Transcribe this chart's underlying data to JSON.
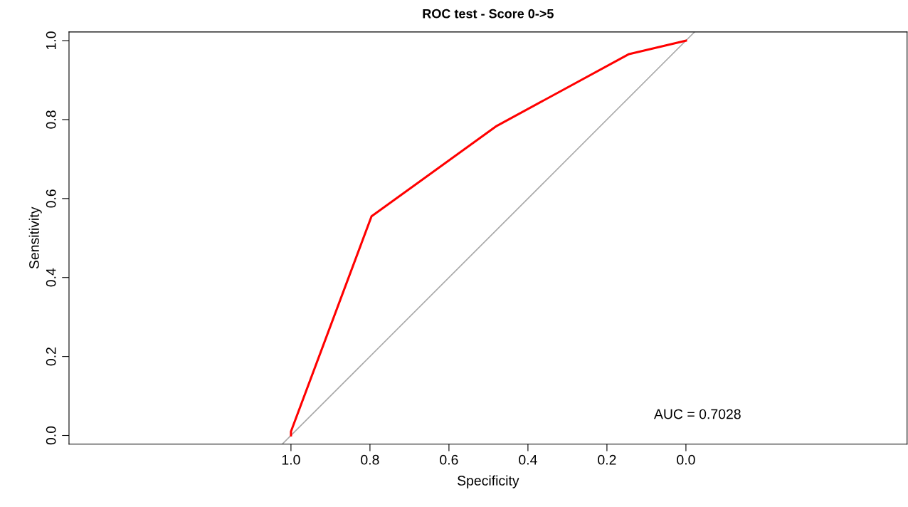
{
  "chart_data": {
    "type": "line",
    "title": "ROC test - Score 0->5",
    "xlabel": "Specificity",
    "ylabel": "Sensitivity",
    "series": [
      {
        "color": "#aaaaaa",
        "x": [
          1.022,
          -0.022
        ],
        "values": [
          -0.022,
          1.022
        ]
      },
      {
        "color": "#ff0000",
        "x": [
          1.0,
          1.0,
          0.796,
          0.479,
          0.144,
          0.0
        ],
        "values": [
          0.0,
          0.01,
          0.555,
          0.784,
          0.966,
          1.0
        ]
      }
    ],
    "xlim": [
      1.562,
      -0.56
    ],
    "ylim": [
      -0.022,
      1.022
    ],
    "xticks": [
      {
        "value": 1,
        "label": "1.0"
      },
      0.8,
      0.6,
      0.4,
      0.2,
      {
        "value": 0,
        "label": "0.0"
      }
    ],
    "yticks": [
      {
        "value": 0,
        "label": "0.0"
      },
      0.2,
      0.4,
      0.6,
      0.8,
      {
        "value": 1,
        "label": "1.0"
      }
    ],
    "annotations": [
      "AUC = 0.7028"
    ],
    "grid": false,
    "legend": false,
    "marker": "none",
    "line_style": "solid"
  }
}
